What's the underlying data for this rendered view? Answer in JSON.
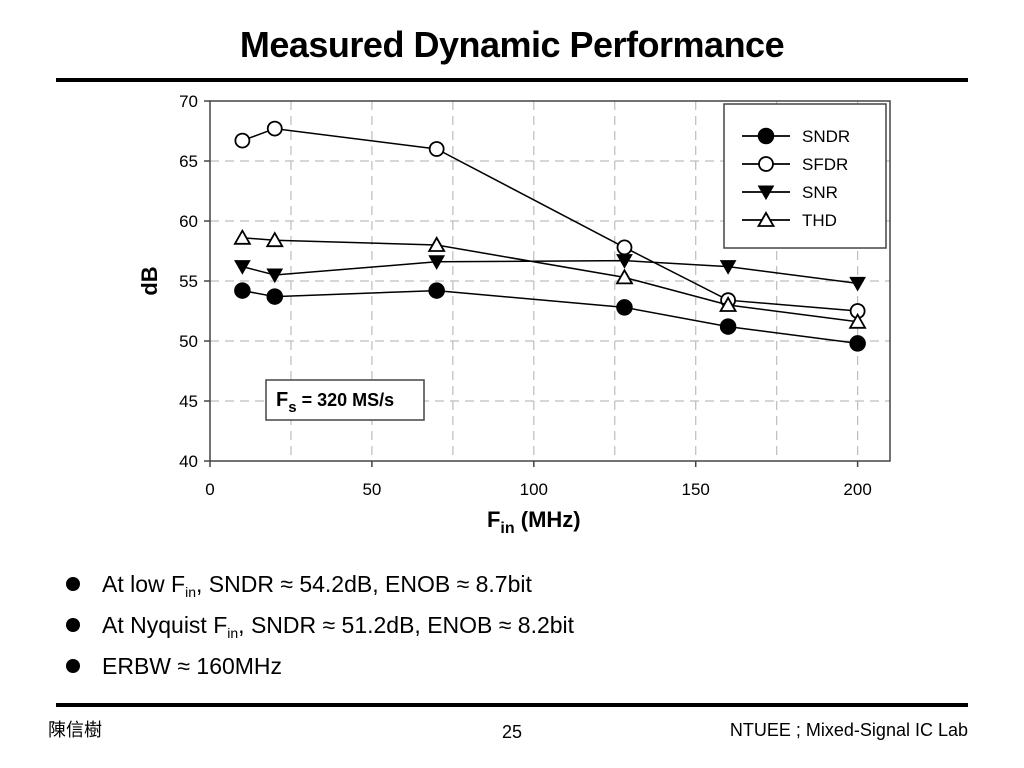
{
  "slide": {
    "title": "Measured Dynamic Performance",
    "bullets": [
      {
        "pre": "At low F",
        "sub": "in",
        "post": ", SNDR ≈ 54.2dB, ENOB ≈ 8.7bit"
      },
      {
        "pre": "At Nyquist F",
        "sub": "in",
        "post": ", SNDR ≈ 51.2dB, ENOB ≈ 8.2bit"
      },
      {
        "pre": "ERBW ≈ 160MHz",
        "sub": "",
        "post": ""
      }
    ],
    "footer": {
      "author": "陳信樹",
      "page": "25",
      "lab": "NTUEE ; Mixed-Signal IC Lab"
    }
  },
  "chart_data": {
    "type": "line",
    "title": "",
    "xlabel": {
      "main": "F",
      "sub": "in",
      "rest": " (MHz)"
    },
    "ylabel": "dB",
    "xlim": [
      0,
      210
    ],
    "ylim": [
      40,
      70
    ],
    "xticks": [
      0,
      50,
      100,
      150,
      200
    ],
    "yticks": [
      40,
      45,
      50,
      55,
      60,
      65,
      70
    ],
    "grid": true,
    "legend": "top-right",
    "annotation": {
      "main": "F",
      "sub": "s",
      "rest": " = 320 MS/s"
    },
    "series": [
      {
        "name": "SNDR",
        "marker": "filled-circle",
        "x": [
          10,
          20,
          70,
          128,
          160,
          200
        ],
        "values": [
          54.2,
          53.7,
          54.2,
          52.8,
          51.2,
          49.8
        ]
      },
      {
        "name": "SFDR",
        "marker": "open-circle",
        "x": [
          10,
          20,
          70,
          128,
          160,
          200
        ],
        "values": [
          66.7,
          67.7,
          66.0,
          57.8,
          53.4,
          52.5
        ]
      },
      {
        "name": "SNR",
        "marker": "filled-triangle-down",
        "x": [
          10,
          20,
          70,
          128,
          160,
          200
        ],
        "values": [
          56.2,
          55.5,
          56.6,
          56.7,
          56.2,
          54.8
        ]
      },
      {
        "name": "THD",
        "marker": "open-triangle-up",
        "x": [
          10,
          20,
          70,
          128,
          160,
          200
        ],
        "values": [
          58.6,
          58.4,
          58.0,
          55.3,
          53.0,
          51.6
        ]
      }
    ]
  }
}
